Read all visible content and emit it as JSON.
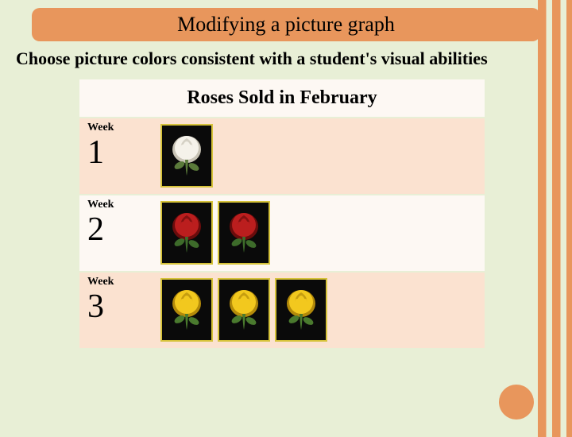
{
  "title": "Modifying a picture graph",
  "subtitle": "Choose picture colors consistent with a student's visual abilities",
  "chart": {
    "title": "Roses Sold in February",
    "week_label": "Week",
    "rows": [
      {
        "num": "1",
        "count": 1,
        "rose_color": "#f5f2ea",
        "rose_shadow": "#c8c3b5",
        "leaf": "#5a7a3a"
      },
      {
        "num": "2",
        "count": 2,
        "rose_color": "#bb1e1e",
        "rose_shadow": "#6b0c0c",
        "leaf": "#3d6b2a"
      },
      {
        "num": "3",
        "count": 3,
        "rose_color": "#f2c81e",
        "rose_shadow": "#b38a0a",
        "leaf": "#4a7a2e"
      }
    ]
  },
  "colors": {
    "accent": "#e8965c",
    "bg": "#e8efd6",
    "row_even": "#fbe2d0",
    "row_odd": "#fdf8f3",
    "rose_border": "#d6c33a",
    "rose_bg": "#0a0a0a"
  }
}
